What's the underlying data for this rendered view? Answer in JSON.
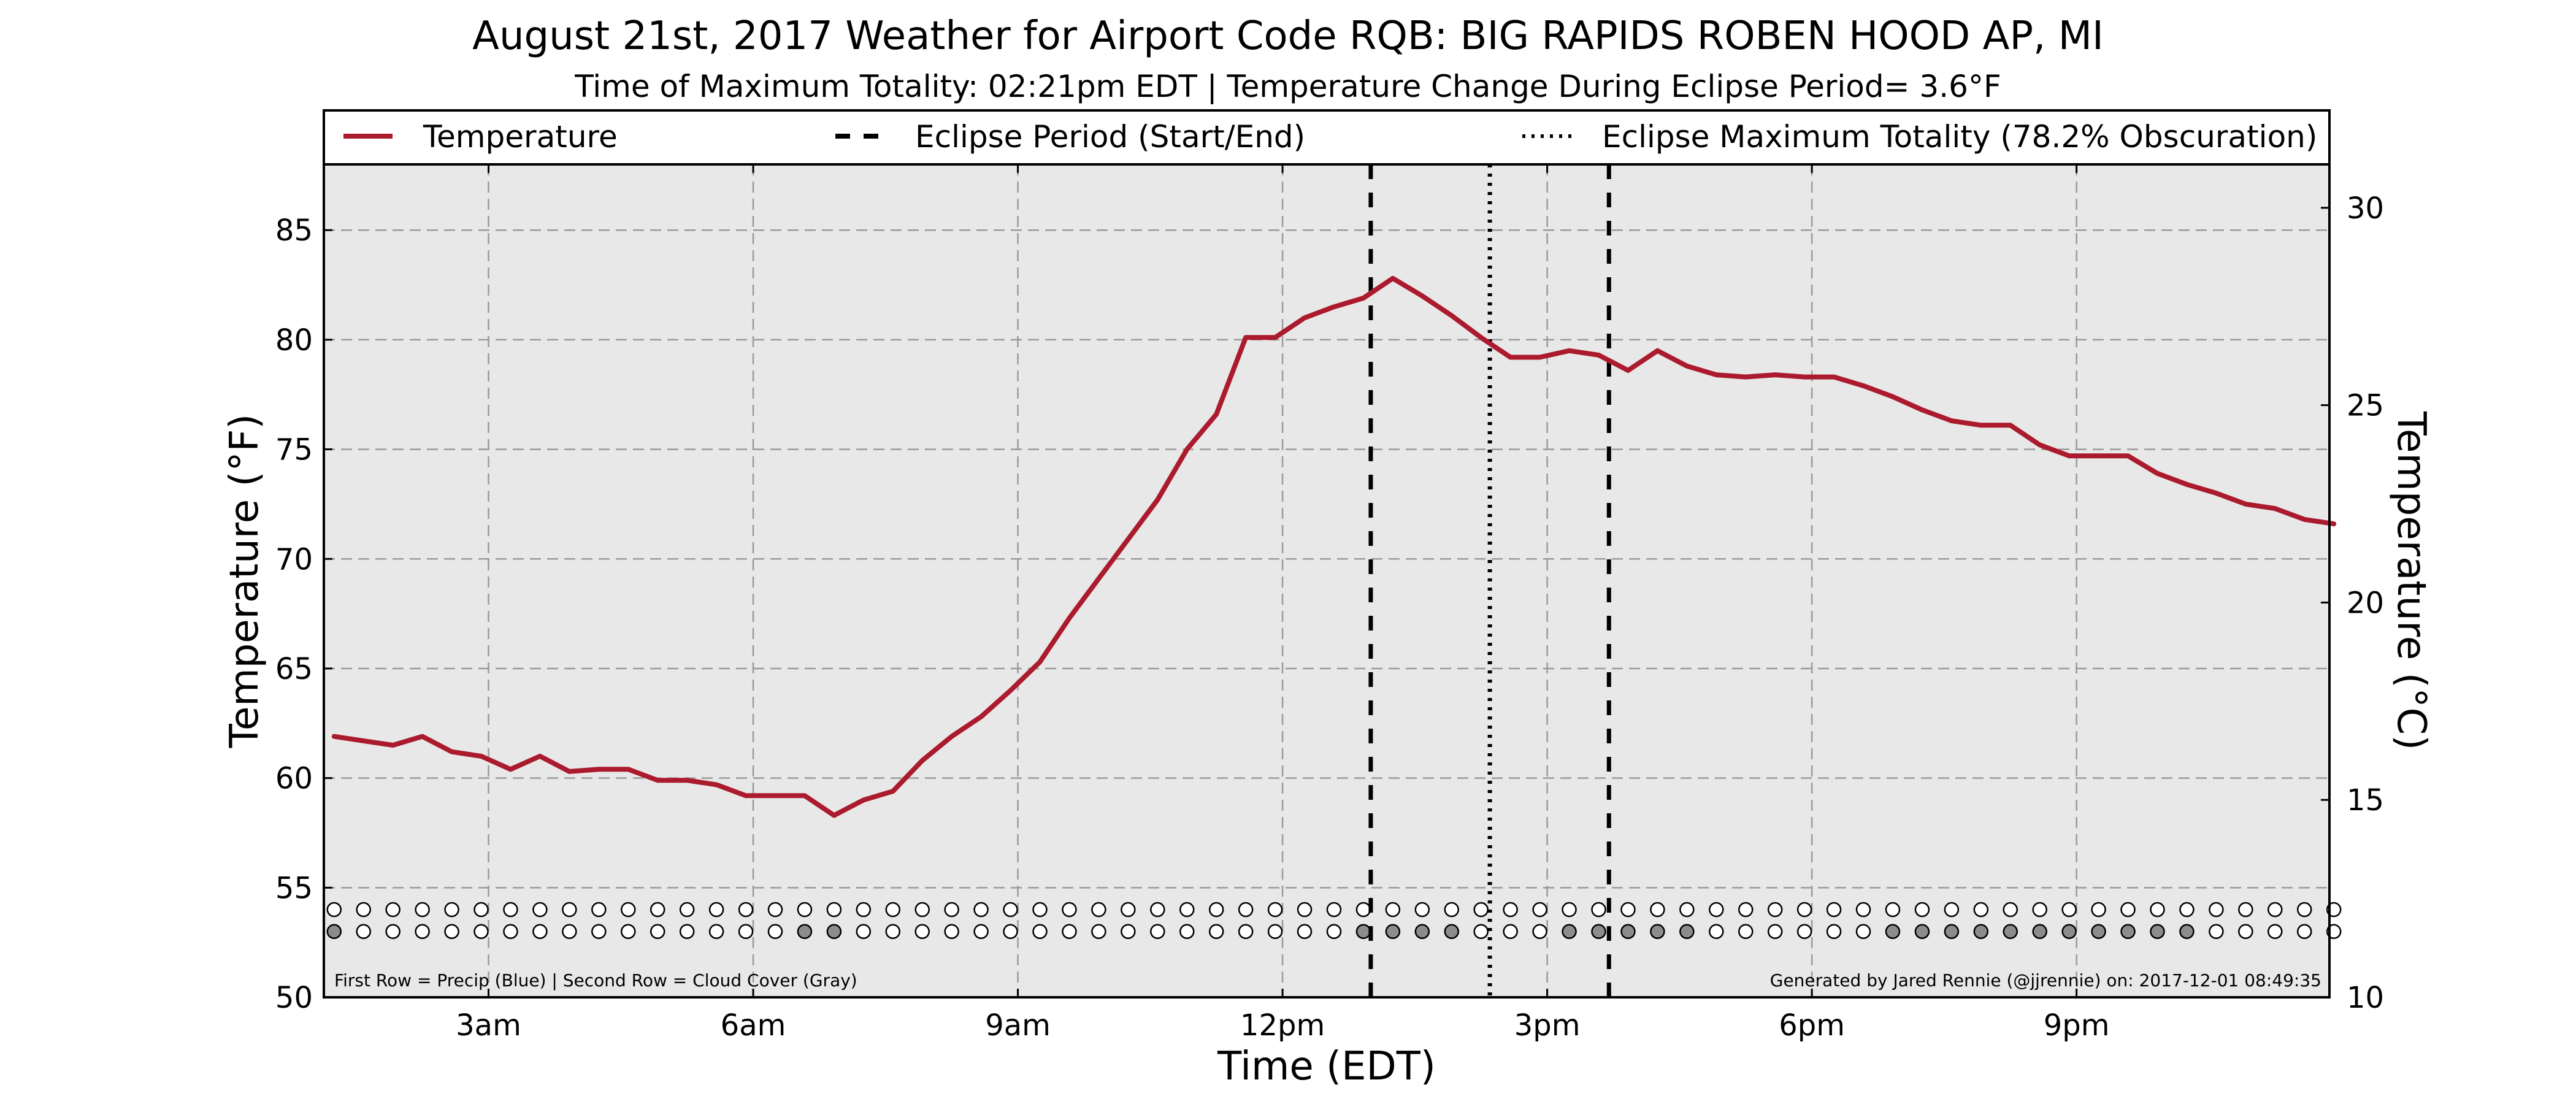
{
  "colors": {
    "temperature": "#ab1a2d",
    "cloud_filled": "#8c8c8c",
    "precip_filled": "#3a6fd8",
    "empty": "#ffffff",
    "plot_background": "#e8e8e8"
  },
  "chart_data": {
    "type": "line",
    "title": "August 21st, 2017 Weather for Airport Code RQB: BIG RAPIDS ROBEN HOOD AP, MI",
    "subtitle": "Time of Maximum Totality: 02:21pm EDT | Temperature Change During Eclipse Period= 3.6°F",
    "xlabel": "Time (EDT)",
    "ylabel": "Temperature (°F)",
    "y2label": "Temperature (°C)",
    "xlim": [
      "2017-08-21 01:08",
      "2017-08-21 23:52"
    ],
    "ylim": [
      50,
      88
    ],
    "y2lim": [
      10,
      31.1
    ],
    "grid": true,
    "legend_placement": "top",
    "x_ticks": [
      {
        "time": "2017-08-21 03:00",
        "label": "3am"
      },
      {
        "time": "2017-08-21 06:00",
        "label": "6am"
      },
      {
        "time": "2017-08-21 09:00",
        "label": "9am"
      },
      {
        "time": "2017-08-21 12:00",
        "label": "12pm"
      },
      {
        "time": "2017-08-21 15:00",
        "label": "3pm"
      },
      {
        "time": "2017-08-21 18:00",
        "label": "6pm"
      },
      {
        "time": "2017-08-21 21:00",
        "label": "9pm"
      }
    ],
    "y_ticks": [
      50,
      55,
      60,
      65,
      70,
      75,
      80,
      85
    ],
    "y2_ticks": [
      10,
      15,
      20,
      25,
      30
    ],
    "legend": [
      {
        "label": "Temperature",
        "style": "solid"
      },
      {
        "label": "Eclipse Period (Start/End)",
        "style": "dashed"
      },
      {
        "label": "Eclipse Maximum Totality (78.2% Obscuration)",
        "style": "dotted"
      }
    ],
    "events": {
      "eclipse_start": "2017-08-21 13:00",
      "eclipse_max": "2017-08-21 14:21",
      "eclipse_end": "2017-08-21 15:42"
    },
    "series": [
      {
        "name": "Temperature",
        "points": [
          [
            "01:15",
            61.9
          ],
          [
            "01:35",
            61.7
          ],
          [
            "01:55",
            61.5
          ],
          [
            "02:15",
            61.9
          ],
          [
            "02:35",
            61.2
          ],
          [
            "02:55",
            61.0
          ],
          [
            "03:15",
            60.4
          ],
          [
            "03:35",
            61.0
          ],
          [
            "03:55",
            60.3
          ],
          [
            "04:15",
            60.4
          ],
          [
            "04:35",
            60.4
          ],
          [
            "04:55",
            59.9
          ],
          [
            "05:15",
            59.9
          ],
          [
            "05:35",
            59.7
          ],
          [
            "05:55",
            59.2
          ],
          [
            "06:15",
            59.2
          ],
          [
            "06:35",
            59.2
          ],
          [
            "06:55",
            58.3
          ],
          [
            "07:15",
            59.0
          ],
          [
            "07:35",
            59.4
          ],
          [
            "07:55",
            60.8
          ],
          [
            "08:15",
            61.9
          ],
          [
            "08:35",
            62.8
          ],
          [
            "08:55",
            64.0
          ],
          [
            "09:15",
            65.3
          ],
          [
            "09:35",
            67.3
          ],
          [
            "09:55",
            69.1
          ],
          [
            "10:15",
            70.9
          ],
          [
            "10:35",
            72.7
          ],
          [
            "10:55",
            75.0
          ],
          [
            "11:15",
            76.6
          ],
          [
            "11:35",
            80.1
          ],
          [
            "11:55",
            80.1
          ],
          [
            "12:15",
            81.0
          ],
          [
            "12:35",
            81.5
          ],
          [
            "12:55",
            81.9
          ],
          [
            "13:15",
            82.8
          ],
          [
            "13:35",
            82.0
          ],
          [
            "13:55",
            81.1
          ],
          [
            "14:15",
            80.1
          ],
          [
            "14:35",
            79.2
          ],
          [
            "14:55",
            79.2
          ],
          [
            "15:15",
            79.5
          ],
          [
            "15:35",
            79.3
          ],
          [
            "15:55",
            78.6
          ],
          [
            "16:15",
            79.5
          ],
          [
            "16:35",
            78.8
          ],
          [
            "16:55",
            78.4
          ],
          [
            "17:15",
            78.3
          ],
          [
            "17:35",
            78.4
          ],
          [
            "17:55",
            78.3
          ],
          [
            "18:15",
            78.3
          ],
          [
            "18:35",
            77.9
          ],
          [
            "18:55",
            77.4
          ],
          [
            "19:15",
            76.8
          ],
          [
            "19:35",
            76.3
          ],
          [
            "19:55",
            76.1
          ],
          [
            "20:15",
            76.1
          ],
          [
            "20:35",
            75.2
          ],
          [
            "20:55",
            74.7
          ],
          [
            "21:15",
            74.7
          ],
          [
            "21:35",
            74.7
          ],
          [
            "21:55",
            73.9
          ],
          [
            "22:15",
            73.4
          ],
          [
            "22:35",
            73.0
          ],
          [
            "22:55",
            72.5
          ],
          [
            "23:15",
            72.3
          ],
          [
            "23:35",
            71.8
          ],
          [
            "23:55",
            71.6
          ]
        ]
      }
    ],
    "station_markers": {
      "y_values": {
        "precip_row": 54.0,
        "cloud_row": 53.0
      },
      "times": [
        "01:15",
        "01:35",
        "01:55",
        "02:15",
        "02:35",
        "02:55",
        "03:15",
        "03:35",
        "03:55",
        "04:15",
        "04:35",
        "04:55",
        "05:15",
        "05:35",
        "05:55",
        "06:15",
        "06:35",
        "06:55",
        "07:15",
        "07:35",
        "07:55",
        "08:15",
        "08:35",
        "08:55",
        "09:15",
        "09:35",
        "09:55",
        "10:15",
        "10:35",
        "10:55",
        "11:15",
        "11:35",
        "11:55",
        "12:15",
        "12:35",
        "12:55",
        "13:15",
        "13:35",
        "13:55",
        "14:15",
        "14:35",
        "14:55",
        "15:15",
        "15:35",
        "15:55",
        "16:15",
        "16:35",
        "16:55",
        "17:15",
        "17:35",
        "17:55",
        "18:15",
        "18:35",
        "18:55",
        "19:15",
        "19:35",
        "19:55",
        "20:15",
        "20:35",
        "20:55",
        "21:15",
        "21:35",
        "21:55",
        "22:15",
        "22:35",
        "22:55",
        "23:15",
        "23:35",
        "23:55"
      ],
      "precip": [
        0,
        0,
        0,
        0,
        0,
        0,
        0,
        0,
        0,
        0,
        0,
        0,
        0,
        0,
        0,
        0,
        0,
        0,
        0,
        0,
        0,
        0,
        0,
        0,
        0,
        0,
        0,
        0,
        0,
        0,
        0,
        0,
        0,
        0,
        0,
        0,
        0,
        0,
        0,
        0,
        0,
        0,
        0,
        0,
        0,
        0,
        0,
        0,
        0,
        0,
        0,
        0,
        0,
        0,
        0,
        0,
        0,
        0,
        0,
        0,
        0,
        0,
        0,
        0,
        0,
        0,
        0,
        0,
        0
      ],
      "cloud": [
        1,
        0,
        0,
        0,
        0,
        0,
        0,
        0,
        0,
        0,
        0,
        0,
        0,
        0,
        0,
        0,
        1,
        1,
        0,
        0,
        0,
        0,
        0,
        0,
        0,
        0,
        0,
        0,
        0,
        0,
        0,
        0,
        0,
        0,
        0,
        1,
        1,
        1,
        1,
        0,
        0,
        0,
        1,
        1,
        1,
        1,
        1,
        0,
        0,
        0,
        0,
        0,
        0,
        1,
        1,
        1,
        1,
        1,
        1,
        1,
        1,
        1,
        1,
        1,
        0,
        0,
        0,
        0,
        0
      ]
    }
  },
  "footnotes": {
    "left": "First Row = Precip (Blue) | Second Row = Cloud Cover (Gray)",
    "right": "Generated by Jared Rennie (@jjrennie) on: 2017-12-01 08:49:35"
  }
}
